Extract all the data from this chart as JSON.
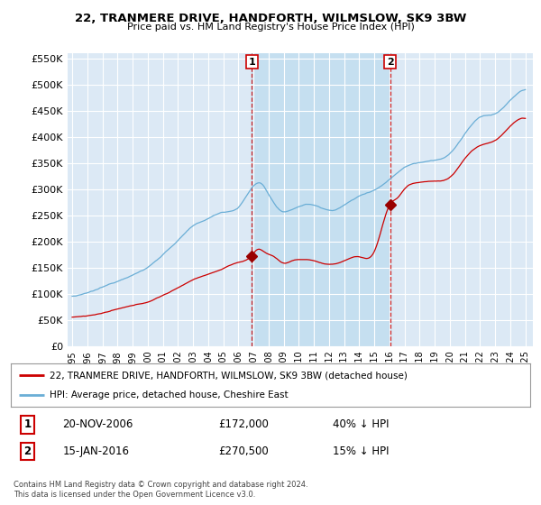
{
  "title": "22, TRANMERE DRIVE, HANDFORTH, WILMSLOW, SK9 3BW",
  "subtitle": "Price paid vs. HM Land Registry's House Price Index (HPI)",
  "ylabel_ticks": [
    "£0",
    "£50K",
    "£100K",
    "£150K",
    "£200K",
    "£250K",
    "£300K",
    "£350K",
    "£400K",
    "£450K",
    "£500K",
    "£550K"
  ],
  "ytick_values": [
    0,
    50000,
    100000,
    150000,
    200000,
    250000,
    300000,
    350000,
    400000,
    450000,
    500000,
    550000
  ],
  "ylim": [
    0,
    560000
  ],
  "xlim_start": 1995.0,
  "xlim_end": 2025.5,
  "background_color": "#dce9f5",
  "plot_bg_color": "#dce9f5",
  "shade_color": "#c5dff0",
  "grid_color": "#ffffff",
  "sale1_x": 2006.89,
  "sale1_y": 172000,
  "sale2_x": 2016.04,
  "sale2_y": 270500,
  "sale1_label": "1",
  "sale2_label": "2",
  "legend_line1": "22, TRANMERE DRIVE, HANDFORTH, WILMSLOW, SK9 3BW (detached house)",
  "legend_line2": "HPI: Average price, detached house, Cheshire East",
  "annotation1_date": "20-NOV-2006",
  "annotation1_price": "£172,000",
  "annotation1_hpi": "40% ↓ HPI",
  "annotation2_date": "15-JAN-2016",
  "annotation2_price": "£270,500",
  "annotation2_hpi": "15% ↓ HPI",
  "footer": "Contains HM Land Registry data © Crown copyright and database right 2024.\nThis data is licensed under the Open Government Licence v3.0.",
  "hpi_color": "#6aaed6",
  "sale_color": "#cc0000",
  "sale_color_dark": "#990000"
}
